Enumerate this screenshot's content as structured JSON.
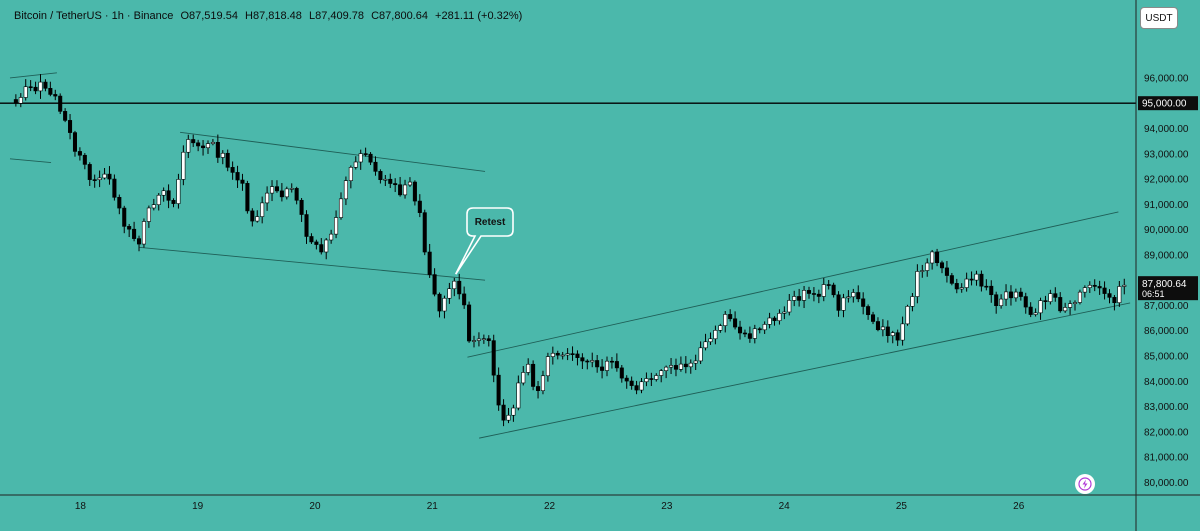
{
  "header": {
    "symbol": "Bitcoin / TetherUS · 1h · Binance",
    "open": "O87,519.54",
    "high": "H87,818.48",
    "low": "L87,409.78",
    "close": "C87,800.64",
    "change": "+281.11 (+0.32%)"
  },
  "currency_button": "USDT",
  "colors": {
    "background": "#4bb8ab",
    "bull": "#ffffff",
    "bear": "#000000",
    "line": "#1f5f57"
  },
  "chart_data": {
    "type": "candlestick",
    "title": "",
    "xlabel": "",
    "ylabel": "",
    "x_ticks": [
      "18",
      "19",
      "20",
      "21",
      "22",
      "23",
      "24",
      "25",
      "26"
    ],
    "y_ticks": [
      "80,000.00",
      "81,000.00",
      "82,000.00",
      "83,000.00",
      "84,000.00",
      "85,000.00",
      "86,000.00",
      "87,000.00",
      "88,000.00",
      "89,000.00",
      "90,000.00",
      "91,000.00",
      "92,000.00",
      "93,000.00",
      "94,000.00",
      "96,000.00"
    ],
    "ylim": [
      79500,
      97500
    ],
    "xlim": [
      17.4,
      27.0
    ],
    "horizontal_line": {
      "value": 95000,
      "label": "95,000.00"
    },
    "last_price": {
      "value": 87800.64,
      "label": "87,800.64",
      "countdown": "06:51"
    },
    "annotation": {
      "text": "Retest",
      "x": 21.2,
      "y": 88000
    },
    "trendlines": [
      {
        "x1": 17.4,
        "y1": 96000,
        "x2": 17.8,
        "y2": 96200
      },
      {
        "x1": 17.4,
        "y1": 92800,
        "x2": 17.75,
        "y2": 92650
      },
      {
        "x1": 18.85,
        "y1": 93850,
        "x2": 21.45,
        "y2": 92300
      },
      {
        "x1": 18.5,
        "y1": 89300,
        "x2": 21.45,
        "y2": 88000
      },
      {
        "x1": 21.3,
        "y1": 84950,
        "x2": 26.85,
        "y2": 90700
      },
      {
        "x1": 21.4,
        "y1": 81750,
        "x2": 26.95,
        "y2": 87100
      }
    ],
    "candle_anchors": [
      [
        17.45,
        94900
      ],
      [
        17.55,
        95600
      ],
      [
        17.7,
        95700
      ],
      [
        17.78,
        95400
      ],
      [
        17.9,
        93800
      ],
      [
        18.0,
        92800
      ],
      [
        18.1,
        92000
      ],
      [
        18.2,
        92200
      ],
      [
        18.32,
        91200
      ],
      [
        18.38,
        90200
      ],
      [
        18.5,
        89600
      ],
      [
        18.6,
        90900
      ],
      [
        18.7,
        91400
      ],
      [
        18.8,
        91000
      ],
      [
        18.9,
        93600
      ],
      [
        19.0,
        93400
      ],
      [
        19.12,
        93300
      ],
      [
        19.25,
        92700
      ],
      [
        19.38,
        91700
      ],
      [
        19.45,
        90100
      ],
      [
        19.6,
        91700
      ],
      [
        19.7,
        91400
      ],
      [
        19.82,
        91800
      ],
      [
        19.92,
        89800
      ],
      [
        20.05,
        89000
      ],
      [
        20.15,
        90000
      ],
      [
        20.25,
        91800
      ],
      [
        20.35,
        92700
      ],
      [
        20.42,
        93000
      ],
      [
        20.52,
        92200
      ],
      [
        20.6,
        92000
      ],
      [
        20.72,
        91500
      ],
      [
        20.8,
        91800
      ],
      [
        20.88,
        91000
      ],
      [
        20.98,
        88000
      ],
      [
        21.05,
        86700
      ],
      [
        21.12,
        87300
      ],
      [
        21.2,
        88000
      ],
      [
        21.28,
        86800
      ],
      [
        21.33,
        85300
      ],
      [
        21.42,
        86000
      ],
      [
        21.48,
        85600
      ],
      [
        21.55,
        83500
      ],
      [
        21.62,
        82300
      ],
      [
        21.68,
        82600
      ],
      [
        21.75,
        84400
      ],
      [
        21.82,
        84500
      ],
      [
        21.9,
        83500
      ],
      [
        22.0,
        85100
      ],
      [
        22.1,
        84800
      ],
      [
        22.2,
        85200
      ],
      [
        22.32,
        84900
      ],
      [
        22.45,
        84600
      ],
      [
        22.55,
        84800
      ],
      [
        22.65,
        84000
      ],
      [
        22.75,
        83800
      ],
      [
        22.88,
        84300
      ],
      [
        23.0,
        84600
      ],
      [
        23.1,
        84600
      ],
      [
        23.2,
        84700
      ],
      [
        23.3,
        85300
      ],
      [
        23.4,
        86000
      ],
      [
        23.5,
        86700
      ],
      [
        23.6,
        86200
      ],
      [
        23.7,
        85700
      ],
      [
        23.82,
        86400
      ],
      [
        23.95,
        86500
      ],
      [
        24.05,
        87100
      ],
      [
        24.15,
        87400
      ],
      [
        24.28,
        87400
      ],
      [
        24.38,
        88000
      ],
      [
        24.45,
        86800
      ],
      [
        24.55,
        87400
      ],
      [
        24.65,
        87200
      ],
      [
        24.72,
        86800
      ],
      [
        24.8,
        85900
      ],
      [
        24.9,
        86000
      ],
      [
        24.98,
        85700
      ],
      [
        25.05,
        86800
      ],
      [
        25.15,
        88400
      ],
      [
        25.25,
        89000
      ],
      [
        25.32,
        88500
      ],
      [
        25.42,
        88100
      ],
      [
        25.5,
        87600
      ],
      [
        25.6,
        88200
      ],
      [
        25.7,
        87900
      ],
      [
        25.8,
        87000
      ],
      [
        25.9,
        87500
      ],
      [
        26.0,
        87300
      ],
      [
        26.08,
        86600
      ],
      [
        26.18,
        87000
      ],
      [
        26.28,
        87500
      ],
      [
        26.38,
        86800
      ],
      [
        26.48,
        87300
      ],
      [
        26.58,
        87600
      ],
      [
        26.68,
        87900
      ],
      [
        26.72,
        87500
      ],
      [
        26.78,
        87100
      ],
      [
        26.85,
        87520
      ],
      [
        26.92,
        87800
      ]
    ]
  }
}
